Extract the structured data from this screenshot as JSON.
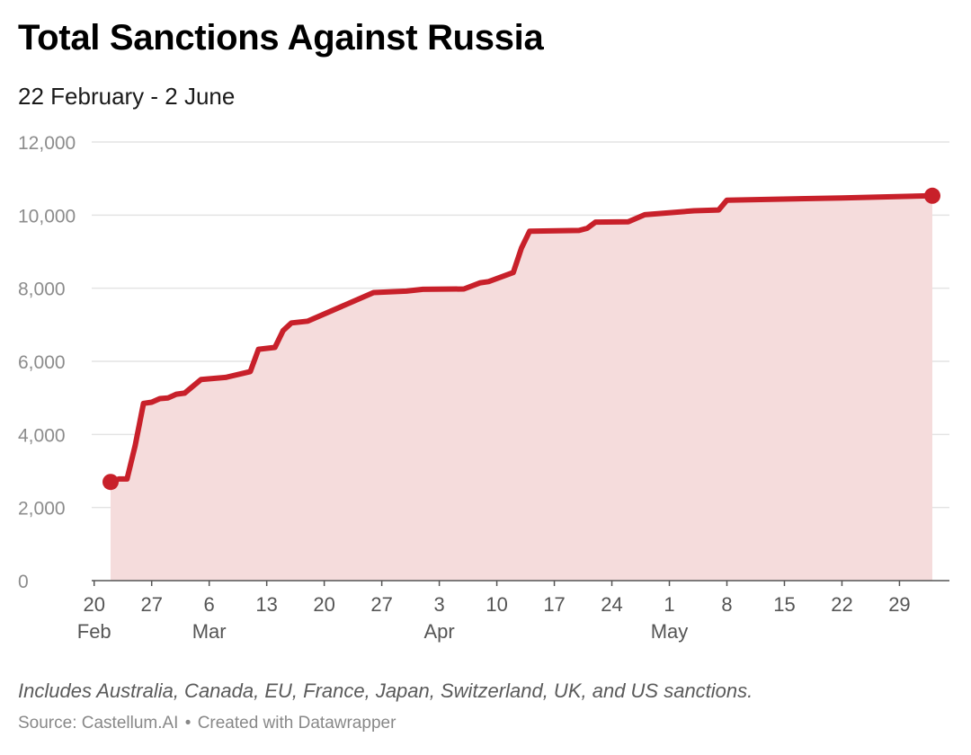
{
  "header": {
    "title": "Total Sanctions Against Russia",
    "subtitle": "22 February - 2 June"
  },
  "footer": {
    "note": "Includes Australia, Canada, EU, France, Japan, Switzerland, UK, and US sanctions.",
    "source_label": "Source: Castellum.AI",
    "separator": "•",
    "credit": "Created with Datawrapper"
  },
  "colors": {
    "line": "#c8202a",
    "area": "#f5dcdc",
    "grid": "#e4e4e4",
    "baseline": "#555555"
  },
  "chart_data": {
    "type": "area",
    "title": "Total Sanctions Against Russia",
    "subtitle": "22 February - 2 June",
    "xlabel": "",
    "ylabel": "",
    "ylim": [
      0,
      12000
    ],
    "xlim": [
      "2022-02-20",
      "2022-06-03"
    ],
    "grid": true,
    "yticks": [
      0,
      2000,
      4000,
      6000,
      8000,
      10000,
      12000
    ],
    "ytick_labels": [
      "0",
      "2,000",
      "4,000",
      "6,000",
      "8,000",
      "10,000",
      "12,000"
    ],
    "xticks": [
      {
        "date": "2022-02-20",
        "label": "20",
        "month": "Feb"
      },
      {
        "date": "2022-02-27",
        "label": "27",
        "month": ""
      },
      {
        "date": "2022-03-06",
        "label": "6",
        "month": "Mar"
      },
      {
        "date": "2022-03-13",
        "label": "13",
        "month": ""
      },
      {
        "date": "2022-03-20",
        "label": "20",
        "month": ""
      },
      {
        "date": "2022-03-27",
        "label": "27",
        "month": ""
      },
      {
        "date": "2022-04-03",
        "label": "3",
        "month": "Apr"
      },
      {
        "date": "2022-04-10",
        "label": "10",
        "month": ""
      },
      {
        "date": "2022-04-17",
        "label": "17",
        "month": ""
      },
      {
        "date": "2022-04-24",
        "label": "24",
        "month": ""
      },
      {
        "date": "2022-05-01",
        "label": "1",
        "month": "May"
      },
      {
        "date": "2022-05-08",
        "label": "8",
        "month": ""
      },
      {
        "date": "2022-05-15",
        "label": "15",
        "month": ""
      },
      {
        "date": "2022-05-22",
        "label": "22",
        "month": ""
      },
      {
        "date": "2022-05-29",
        "label": "29",
        "month": ""
      }
    ],
    "series": [
      {
        "points": [
          [
            "2022-02-22",
            2700
          ],
          [
            "2022-02-23",
            2780
          ],
          [
            "2022-02-24",
            2780
          ],
          [
            "2022-02-25",
            3700
          ],
          [
            "2022-02-26",
            4850
          ],
          [
            "2022-02-27",
            4880
          ],
          [
            "2022-02-28",
            4980
          ],
          [
            "2022-03-01",
            5000
          ],
          [
            "2022-03-02",
            5100
          ],
          [
            "2022-03-03",
            5130
          ],
          [
            "2022-03-05",
            5500
          ],
          [
            "2022-03-08",
            5560
          ],
          [
            "2022-03-11",
            5720
          ],
          [
            "2022-03-12",
            6330
          ],
          [
            "2022-03-14",
            6380
          ],
          [
            "2022-03-15",
            6840
          ],
          [
            "2022-03-16",
            7050
          ],
          [
            "2022-03-18",
            7100
          ],
          [
            "2022-03-26",
            7880
          ],
          [
            "2022-03-30",
            7920
          ],
          [
            "2022-04-01",
            7970
          ],
          [
            "2022-04-06",
            7980
          ],
          [
            "2022-04-08",
            8150
          ],
          [
            "2022-04-09",
            8180
          ],
          [
            "2022-04-12",
            8430
          ],
          [
            "2022-04-13",
            9100
          ],
          [
            "2022-04-14",
            9560
          ],
          [
            "2022-04-20",
            9580
          ],
          [
            "2022-04-21",
            9640
          ],
          [
            "2022-04-22",
            9810
          ],
          [
            "2022-04-26",
            9820
          ],
          [
            "2022-04-28",
            10010
          ],
          [
            "2022-05-04",
            10120
          ],
          [
            "2022-05-07",
            10140
          ],
          [
            "2022-05-08",
            10410
          ],
          [
            "2022-05-22",
            10470
          ],
          [
            "2022-06-02",
            10530
          ]
        ]
      }
    ]
  }
}
